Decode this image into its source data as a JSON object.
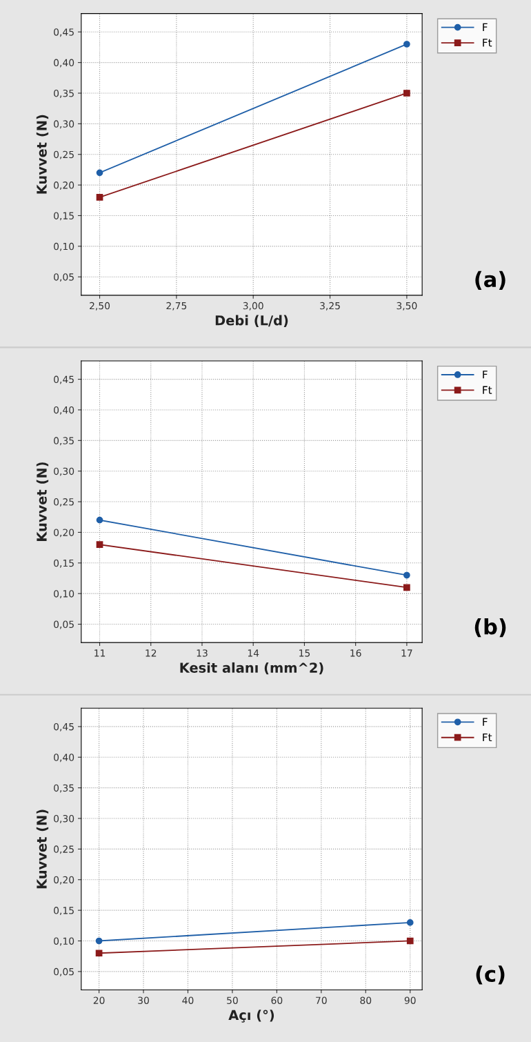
{
  "chart_data": [
    {
      "type": "line",
      "xlabel": "Debi (L/d)",
      "ylabel": "Kuvvet (N)",
      "annotations": [
        "(a)"
      ],
      "x": [
        2.5,
        3.5
      ],
      "series": [
        {
          "name": "F",
          "color": "#1f5fa8",
          "values": [
            0.22,
            0.43
          ],
          "marker": "circle"
        },
        {
          "name": "Ft",
          "color": "#8b1a1a",
          "values": [
            0.18,
            0.35
          ],
          "marker": "square"
        }
      ],
      "xlim": [
        2.44,
        3.55
      ],
      "xticks": [
        {
          "value": 2.5,
          "label": "2,50"
        },
        {
          "value": 2.75,
          "label": "2,75"
        },
        {
          "value": 3.0,
          "label": "3,00"
        },
        {
          "value": 3.25,
          "label": "3,25"
        },
        {
          "value": 3.5,
          "label": "3,50"
        }
      ],
      "ylim": [
        0.02,
        0.48
      ],
      "yticks": [
        {
          "value": 0.05,
          "label": "0,05"
        },
        {
          "value": 0.1,
          "label": "0,10"
        },
        {
          "value": 0.15,
          "label": "0,15"
        },
        {
          "value": 0.2,
          "label": "0,20"
        },
        {
          "value": 0.25,
          "label": "0,25"
        },
        {
          "value": 0.3,
          "label": "0,30"
        },
        {
          "value": 0.35,
          "label": "0,35"
        },
        {
          "value": 0.4,
          "label": "0,40"
        },
        {
          "value": 0.45,
          "label": "0,45"
        }
      ],
      "grid": true,
      "legend": "top right"
    },
    {
      "type": "line",
      "xlabel": "Kesit alanı (mm^2)",
      "ylabel": "Kuvvet (N)",
      "annotations": [
        "(b)"
      ],
      "x": [
        11,
        17
      ],
      "series": [
        {
          "name": "F",
          "color": "#1f5fa8",
          "values": [
            0.22,
            0.13
          ],
          "marker": "circle"
        },
        {
          "name": "Ft",
          "color": "#8b1a1a",
          "values": [
            0.18,
            0.11
          ],
          "marker": "square"
        }
      ],
      "xlim": [
        10.64,
        17.3
      ],
      "xticks": [
        11,
        12,
        13,
        14,
        15,
        16,
        17
      ],
      "ylim": [
        0.02,
        0.48
      ],
      "yticks": [
        {
          "value": 0.05,
          "label": "0,05"
        },
        {
          "value": 0.1,
          "label": "0,10"
        },
        {
          "value": 0.15,
          "label": "0,15"
        },
        {
          "value": 0.2,
          "label": "0,20"
        },
        {
          "value": 0.25,
          "label": "0,25"
        },
        {
          "value": 0.3,
          "label": "0,30"
        },
        {
          "value": 0.35,
          "label": "0,35"
        },
        {
          "value": 0.4,
          "label": "0,40"
        },
        {
          "value": 0.45,
          "label": "0,45"
        }
      ],
      "grid": true,
      "legend": "top right"
    },
    {
      "type": "line",
      "xlabel": "Açı (°)",
      "ylabel": "Kuvvet (N)",
      "annotations": [
        "(c)"
      ],
      "x": [
        20,
        90
      ],
      "series": [
        {
          "name": "F",
          "color": "#1f5fa8",
          "values": [
            0.1,
            0.13
          ],
          "marker": "circle"
        },
        {
          "name": "Ft",
          "color": "#8b1a1a",
          "values": [
            0.08,
            0.1
          ],
          "marker": "square"
        }
      ],
      "xlim": [
        16,
        92.7
      ],
      "xticks": [
        20,
        30,
        40,
        50,
        60,
        70,
        80,
        90
      ],
      "ylim": [
        0.02,
        0.48
      ],
      "yticks": [
        {
          "value": 0.05,
          "label": "0,05"
        },
        {
          "value": 0.1,
          "label": "0,10"
        },
        {
          "value": 0.15,
          "label": "0,15"
        },
        {
          "value": 0.2,
          "label": "0,20"
        },
        {
          "value": 0.25,
          "label": "0,25"
        },
        {
          "value": 0.3,
          "label": "0,30"
        },
        {
          "value": 0.35,
          "label": "0,35"
        },
        {
          "value": 0.4,
          "label": "0,40"
        },
        {
          "value": 0.45,
          "label": "0,45"
        }
      ],
      "grid": true,
      "legend": "top right"
    }
  ]
}
